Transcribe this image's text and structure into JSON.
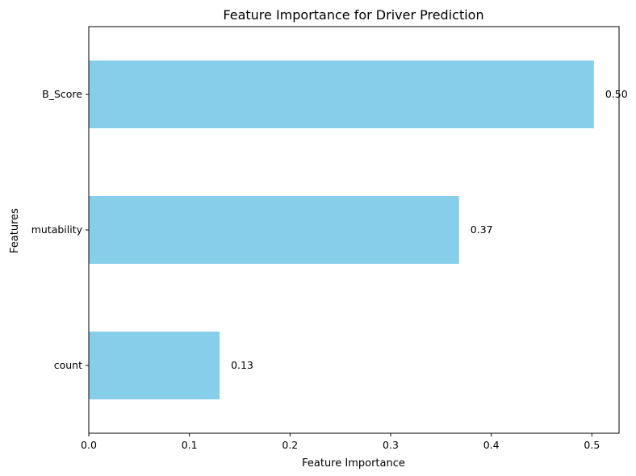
{
  "chart_data": {
    "type": "bar",
    "orientation": "horizontal",
    "title": "Feature Importance for Driver Prediction",
    "xlabel": "Feature Importance",
    "ylabel": "Features",
    "categories": [
      "count",
      "mutability",
      "B_Score"
    ],
    "values": [
      0.13,
      0.368,
      0.502
    ],
    "value_labels": [
      "0.13",
      "0.37",
      "0.50"
    ],
    "xlim": [
      0,
      0.527
    ],
    "xticks": [
      0.0,
      0.1,
      0.2,
      0.3,
      0.4,
      0.5
    ],
    "xtick_labels": [
      "0.0",
      "0.1",
      "0.2",
      "0.3",
      "0.4",
      "0.5"
    ],
    "bar_color": "#87ceeb",
    "grid": false,
    "legend": "none"
  }
}
